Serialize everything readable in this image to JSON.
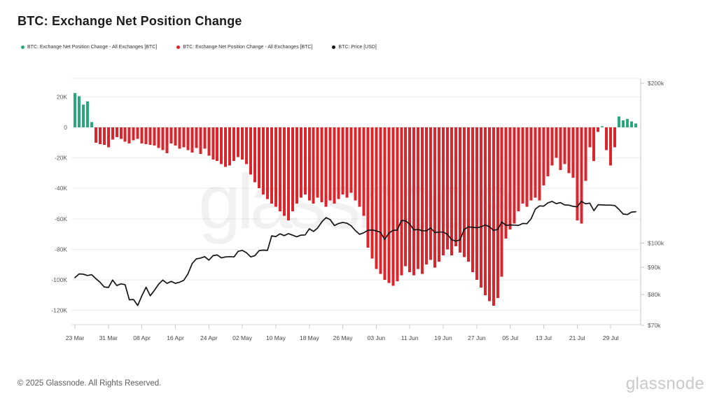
{
  "page": {
    "title": "BTC: Exchange Net Position Change",
    "watermark": "glassnode",
    "footer_copyright": "© 2025 Glassnode. All Rights Reserved.",
    "footer_logo": "glassnode"
  },
  "legend": {
    "items": [
      {
        "label": "BTC: Exchange Net Position Change - All Exchanges [BTC]",
        "color": "#2aa77c"
      },
      {
        "label": "BTC: Exchange Net Position Change - All Exchanges [BTC]",
        "color": "#d9252b"
      },
      {
        "label": "BTC: Price [USD]",
        "color": "#141414"
      }
    ]
  },
  "chart_data": {
    "type": "bar",
    "title": "BTC: Exchange Net Position Change",
    "grid": "horizontal",
    "x_tick_labels": [
      "23 Mar",
      "31 Mar",
      "08 Apr",
      "16 Apr",
      "24 Apr",
      "02 May",
      "10 May",
      "18 May",
      "26 May",
      "03 Jun",
      "11 Jun",
      "19 Jun",
      "27 Jun",
      "05 Jul",
      "13 Jul",
      "21 Jul",
      "29 Jul"
    ],
    "x_tick_day_indices": [
      0,
      8,
      16,
      24,
      32,
      40,
      48,
      56,
      64,
      72,
      80,
      88,
      96,
      104,
      112,
      120,
      128
    ],
    "left_axis": {
      "tick_labels": [
        "20K",
        "0",
        "-20K",
        "-40K",
        "-60K",
        "-80K",
        "-100K",
        "-120K"
      ],
      "tick_values_k": [
        20,
        0,
        -20,
        -40,
        -60,
        -80,
        -100,
        -120
      ],
      "range_k": [
        -130,
        30
      ],
      "unit": "BTC (thousands)"
    },
    "right_axis": {
      "tick_labels": [
        "$200k",
        "$100k",
        "$90k",
        "$80k",
        "$70k"
      ],
      "tick_values_k_usd": [
        200,
        100,
        90,
        80,
        70
      ],
      "scale": "log",
      "range_k_usd": [
        70,
        200
      ]
    },
    "series": [
      {
        "name": "BTC: Exchange Net Position Change - All Exchanges [BTC]",
        "type": "bar",
        "axis": "left",
        "unit": "K BTC per day",
        "positive_color": "#2aa77c",
        "negative_color": "#d9252b",
        "values_k_btc": [
          22.5,
          20.5,
          15,
          17,
          3.5,
          -10,
          -11,
          -11.5,
          -13,
          -8,
          -6.5,
          -7.5,
          -9.5,
          -10.5,
          -8.5,
          -7.5,
          -10.5,
          -11,
          -11.5,
          -12,
          -13.5,
          -15,
          -17,
          -10.5,
          -12,
          -14,
          -13,
          -15,
          -16.5,
          -13.5,
          -17.5,
          -14,
          -18.5,
          -21,
          -22,
          -24,
          -26,
          -25,
          -22,
          -19.5,
          -21,
          -24,
          -31,
          -36,
          -40,
          -44,
          -47,
          -50,
          -52,
          -55,
          -58,
          -61,
          -55,
          -50,
          -46,
          -44,
          -48,
          -50,
          -46,
          -49,
          -52,
          -48,
          -50,
          -47,
          -44,
          -46,
          -43,
          -48,
          -52,
          -58,
          -79,
          -86,
          -93,
          -96,
          -100,
          -102,
          -104,
          -101,
          -97,
          -91,
          -95,
          -97,
          -93,
          -96,
          -90,
          -87,
          -92,
          -88,
          -84,
          -80,
          -84,
          -78,
          -82,
          -85,
          -88,
          -95,
          -100,
          -105,
          -110,
          -114,
          -117,
          -112,
          -98,
          -73,
          -67,
          -63,
          -55,
          -50,
          -52,
          -48,
          -46,
          -48,
          -38,
          -32,
          -25,
          -20,
          -28,
          -24,
          -30,
          -33,
          -61,
          -63,
          -35,
          -13,
          -22,
          -3,
          0.8,
          -15,
          -25,
          -13,
          7,
          4.5,
          5.5,
          4,
          2.5
        ]
      },
      {
        "name": "BTC: Price [USD]",
        "type": "line",
        "axis": "right",
        "unit": "k USD",
        "color": "#141414",
        "values_k_usd": [
          86.1,
          87.5,
          87.4,
          86.9,
          87.2,
          85.7,
          84.4,
          82.7,
          82.5,
          85.2,
          83.2,
          83.8,
          83.5,
          78.2,
          78.3,
          76.3,
          79.6,
          82.6,
          79.6,
          81.5,
          83.7,
          85.2,
          84.0,
          84.7,
          84.0,
          84.4,
          85.1,
          87.5,
          91.5,
          93.4,
          93.7,
          94.3,
          92.9,
          94.7,
          95.0,
          93.8,
          94.2,
          94.3,
          94.2,
          96.5,
          96.9,
          95.9,
          94.2,
          94.7,
          96.8,
          97.0,
          96.9,
          103.2,
          102.9,
          104.1,
          103.3,
          104.2,
          103.5,
          102.8,
          103.5,
          103.6,
          106.4,
          105.2,
          106.8,
          109.7,
          111.7,
          110.7,
          107.9,
          108.9,
          109.4,
          109.0,
          107.8,
          105.6,
          103.9,
          104.6,
          105.7,
          105.9,
          105.4,
          104.8,
          101.6,
          104.4,
          105.7,
          105.8,
          110.3,
          110.2,
          108.6,
          105.9,
          106.1,
          105.5,
          105.5,
          106.8,
          104.7,
          104.9,
          104.9,
          103.9,
          101.5,
          100.9,
          101.4,
          106.1,
          107.3,
          107.1,
          106.9,
          107.3,
          108.2,
          107.4,
          105.7,
          106.1,
          109.6,
          108.0,
          108.2,
          108.1,
          108.0,
          108.9,
          108.8,
          111.2,
          115.9,
          117.5,
          117.4,
          119.1,
          119.8,
          118.7,
          119.2,
          118.0,
          117.9,
          117.3,
          117.0,
          119.9,
          118.6,
          118.9,
          115.1,
          118.1,
          118.0,
          117.9,
          117.9,
          117.7,
          115.7,
          113.4,
          113.2,
          114.4,
          114.6
        ]
      }
    ]
  }
}
